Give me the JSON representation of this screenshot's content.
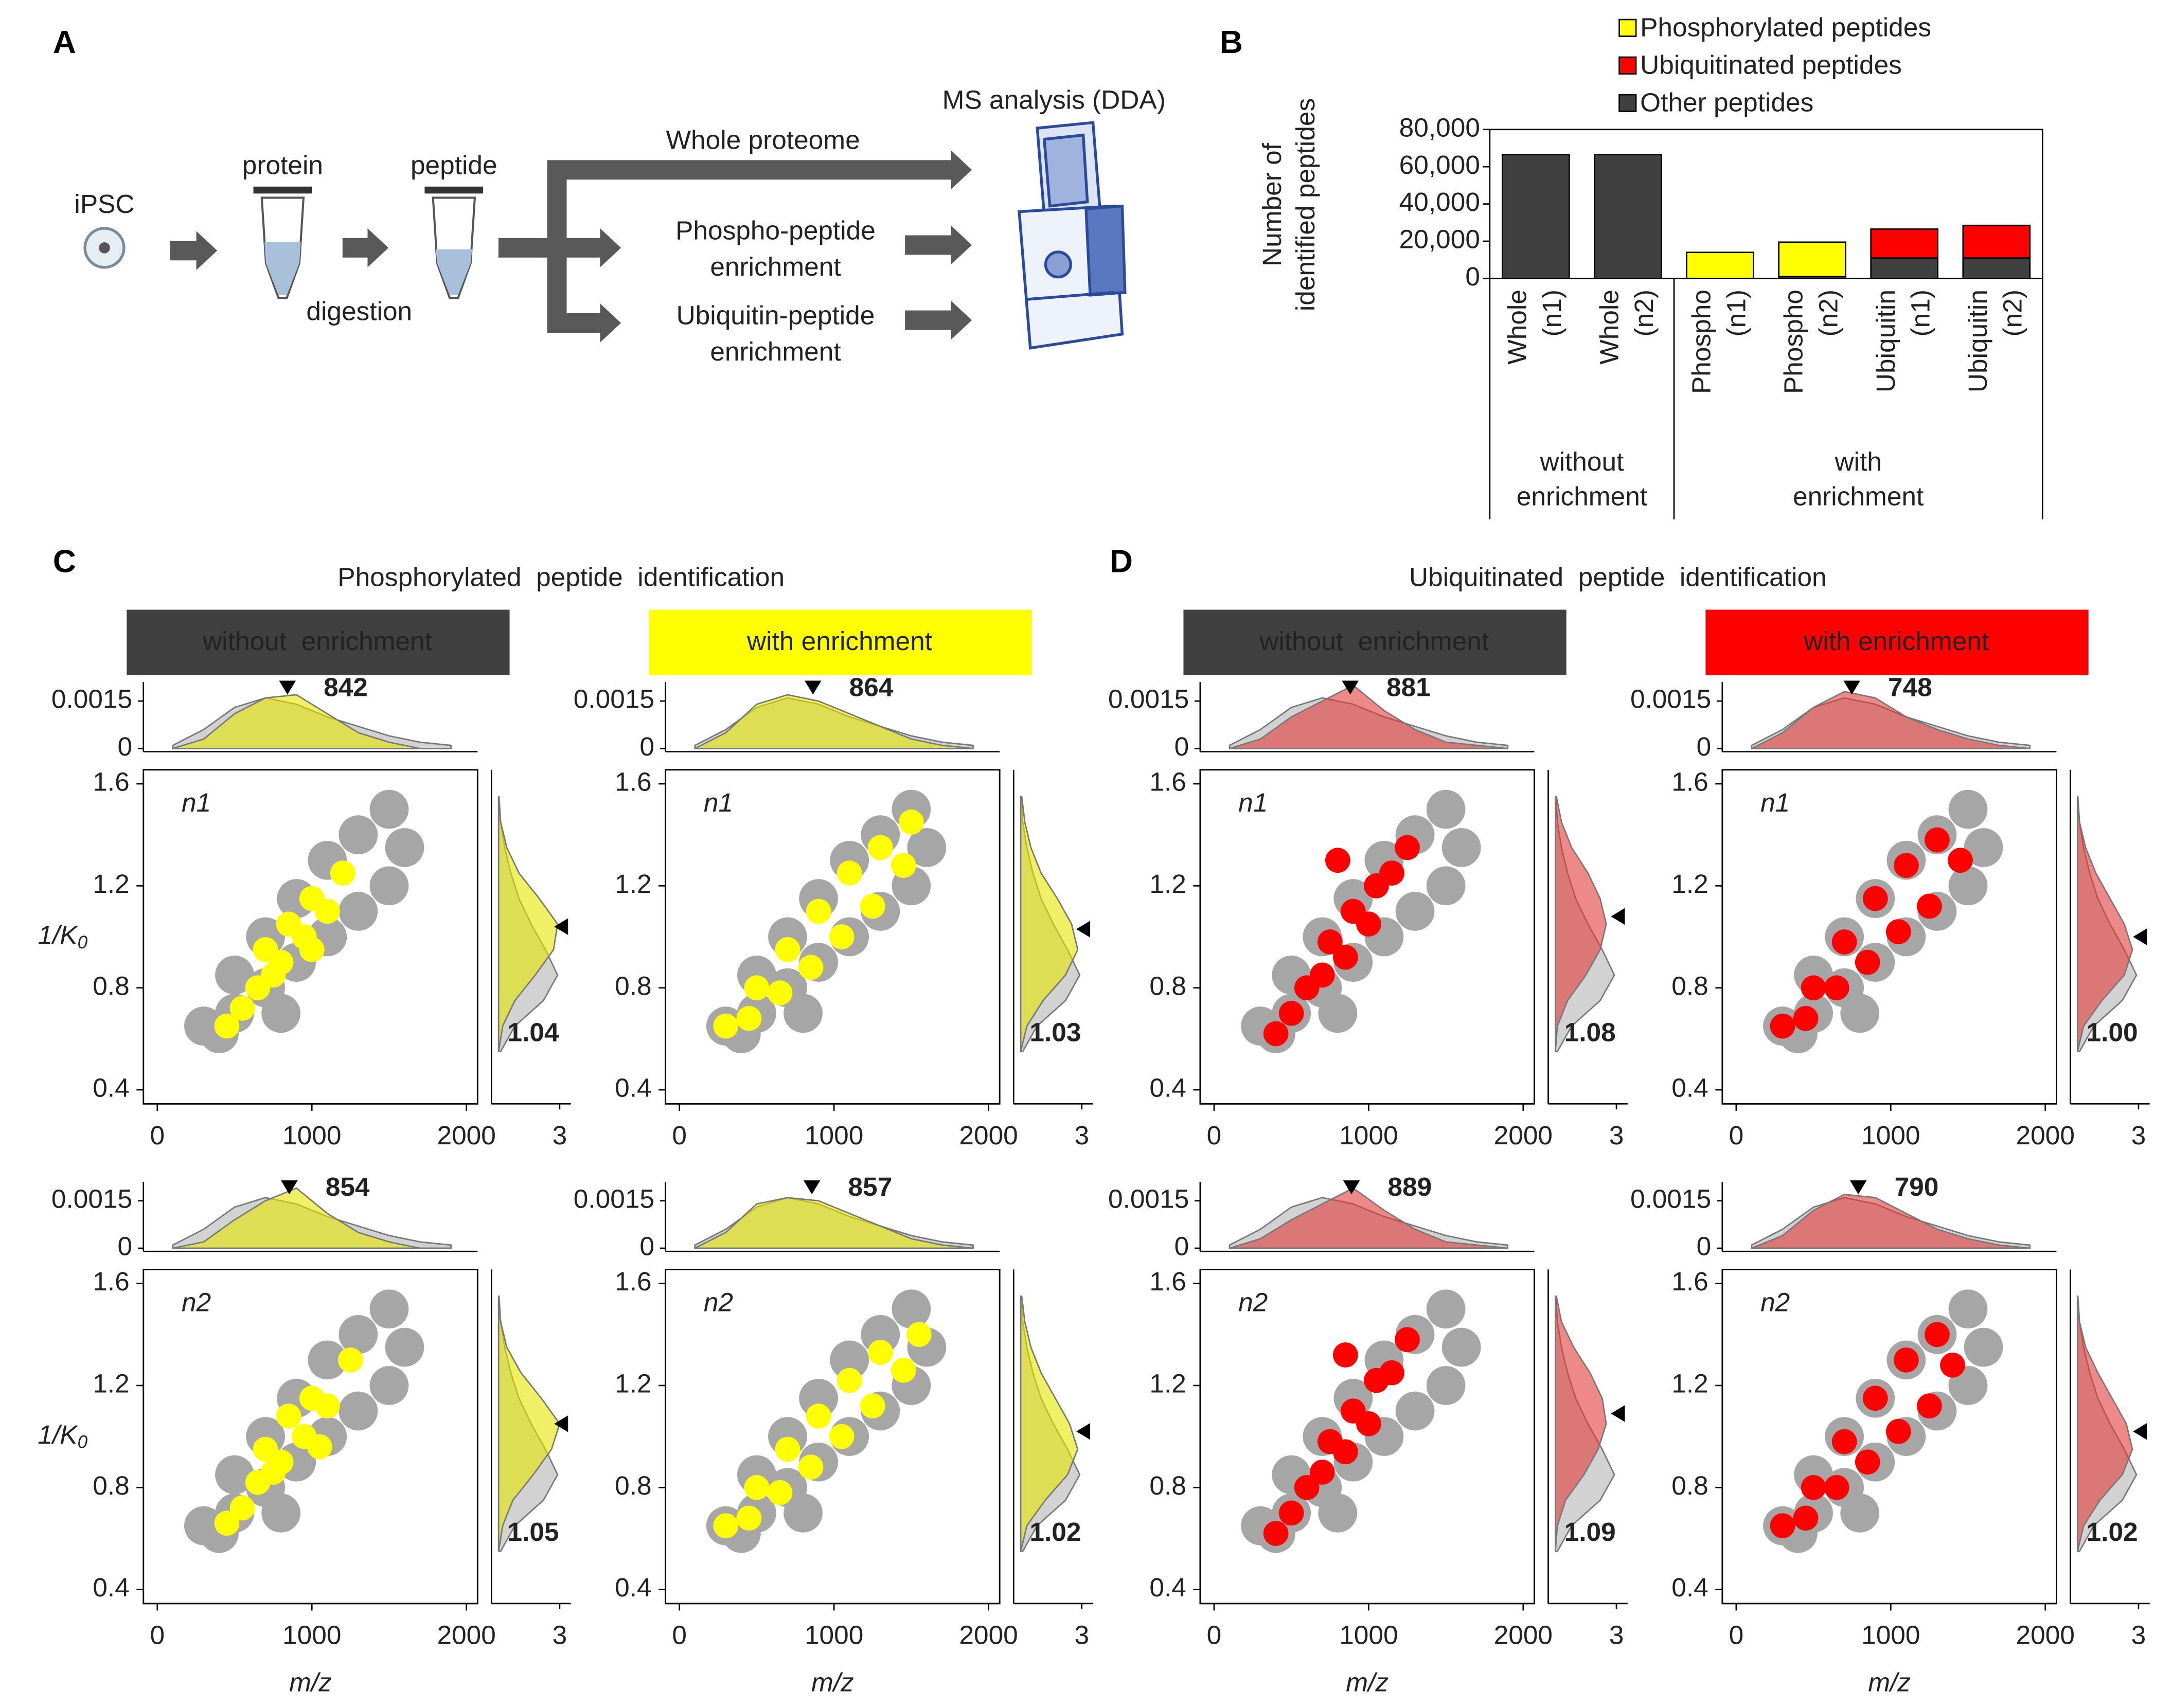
{
  "diagram": {
    "label": "A",
    "cell": "iPSC",
    "protein": "protein",
    "peptide": "peptide",
    "digestion": "digestion",
    "routes": [
      [
        "Whole proteome"
      ],
      [
        "Phospho-peptide",
        "enrichment"
      ],
      [
        "Ubiquitin-peptide",
        "enrichment"
      ]
    ],
    "instrument": "MS analysis (DDA)"
  },
  "chart_data": [
    {
      "type": "bar",
      "label": "B",
      "ylabel": [
        "Number of",
        "identified peptides"
      ],
      "ylim": [
        0,
        80000
      ],
      "yticks": [
        0,
        {
          "value": 20000,
          "label": "20,000"
        },
        {
          "value": 40000,
          "label": "40,000"
        },
        {
          "value": 60000,
          "label": "60,000"
        },
        {
          "value": 80000,
          "label": "80,000"
        }
      ],
      "groups": [
        {
          "label": [
            "without",
            "enrichment"
          ],
          "categories": [
            [
              "Whole",
              "(n1)"
            ],
            [
              "Whole",
              "(n2)"
            ]
          ]
        },
        {
          "label": [
            "with",
            "enrichment"
          ],
          "categories": [
            [
              "Phospho",
              "(n1)"
            ],
            [
              "Phospho",
              "(n2)"
            ],
            [
              "Ubiquitin",
              "(n1)"
            ],
            [
              "Ubiquitin",
              "(n2)"
            ]
          ]
        }
      ],
      "series": [
        {
          "name": "Phosphorylated peptides",
          "color": "#ffff00",
          "values": [
            0,
            0,
            14000,
            18500,
            0,
            0
          ]
        },
        {
          "name": "Ubiquitinated peptides",
          "color": "#ff0000",
          "values": [
            0,
            0,
            0,
            0,
            15500,
            17500
          ]
        },
        {
          "name": "Other peptides",
          "color": "#404040",
          "values": [
            66500,
            66500,
            0,
            1000,
            11000,
            11000
          ]
        }
      ]
    },
    {
      "type": "scatter_grid",
      "label": "C",
      "title": "Phosphorylated  peptide  identification",
      "xlabel": "m/z",
      "ylabel": {
        "text": "1/K",
        "sub": "0"
      },
      "xlim": [
        -90,
        2072
      ],
      "xticks": [
        0,
        1000,
        2000
      ],
      "ylim": [
        0.345,
        1.655
      ],
      "yticks": [
        0.4,
        0.8,
        1.2,
        1.6
      ],
      "density_lim": [
        -0.0001,
        0.0021
      ],
      "density_ticks": [
        0,
        0.0015
      ],
      "k0_density_lim": [
        -0.35,
        3.55
      ],
      "k0_density_ticks": [
        3
      ],
      "density_x": [
        100,
        300,
        500,
        700,
        900,
        1100,
        1300,
        1500,
        1700,
        1900
      ],
      "density_y": [
        0.55,
        0.65,
        0.75,
        0.85,
        0.95,
        1.05,
        1.15,
        1.25,
        1.35,
        1.45,
        1.55
      ],
      "background": [
        {
          "x": [
            300,
            400,
            500,
            500,
            700,
            700,
            800,
            900,
            900,
            1100,
            1100,
            1300,
            1300,
            1500,
            1500,
            1600
          ],
          "y": [
            0.65,
            0.62,
            0.7,
            0.85,
            0.8,
            1.0,
            0.7,
            0.9,
            1.15,
            1.0,
            1.3,
            1.1,
            1.4,
            1.2,
            1.5,
            1.35
          ],
          "density_mz": [
            0.0001,
            0.0006,
            0.0013,
            0.0016,
            0.0014,
            0.001,
            0.0007,
            0.0004,
            0.0002,
            0.0001
          ],
          "density_k0": [
            0.1,
            0.8,
            2.2,
            2.9,
            2.3,
            1.6,
            1.0,
            0.6,
            0.3,
            0.1,
            0.02
          ]
        },
        {
          "x": [
            300,
            400,
            500,
            500,
            700,
            700,
            800,
            900,
            900,
            1100,
            1100,
            1300,
            1300,
            1500,
            1500,
            1600
          ],
          "y": [
            0.65,
            0.62,
            0.7,
            0.85,
            0.8,
            1.0,
            0.7,
            0.9,
            1.15,
            1.0,
            1.3,
            1.1,
            1.4,
            1.2,
            1.5,
            1.35
          ],
          "density_mz": [
            0.0001,
            0.0006,
            0.0013,
            0.0016,
            0.0014,
            0.001,
            0.0007,
            0.0004,
            0.0002,
            0.0001
          ],
          "density_k0": [
            0.1,
            0.8,
            2.2,
            2.9,
            2.3,
            1.6,
            1.0,
            0.6,
            0.3,
            0.1,
            0.02
          ]
        }
      ],
      "columns": [
        {
          "header": "without  enrichment",
          "header_color": "#404040",
          "header_text_color": "#ffffff",
          "color": "#ffff00",
          "plots": [
            {
              "label": "n1",
              "peak_mz": 842,
              "peak_k0": 1.04,
              "x": [
                450,
                550,
                650,
                700,
                800,
                850,
                950,
                1000,
                1100,
                1200,
                750,
                1000
              ],
              "y": [
                0.65,
                0.72,
                0.8,
                0.95,
                0.9,
                1.05,
                1.0,
                1.15,
                1.1,
                1.25,
                0.85,
                0.95
              ],
              "density_mz": [
                0,
                0.0003,
                0.0011,
                0.0016,
                0.0017,
                0.0011,
                0.0005,
                0.0002,
                0,
                0
              ],
              "density_k0": [
                0,
                0.2,
                0.8,
                1.8,
                2.7,
                2.9,
                2.0,
                1.0,
                0.4,
                0.1,
                0
              ]
            },
            {
              "label": "n2",
              "peak_mz": 854,
              "peak_k0": 1.05,
              "x": [
                450,
                550,
                650,
                700,
                800,
                850,
                950,
                1000,
                1100,
                1250,
                750,
                1050
              ],
              "y": [
                0.66,
                0.72,
                0.82,
                0.95,
                0.9,
                1.08,
                1.0,
                1.15,
                1.12,
                1.3,
                0.86,
                0.96
              ],
              "density_mz": [
                0,
                0.0002,
                0.0009,
                0.0015,
                0.0019,
                0.0011,
                0.0005,
                0.0002,
                0,
                0
              ],
              "density_k0": [
                0,
                0.2,
                0.7,
                1.7,
                2.6,
                3.0,
                2.1,
                1.1,
                0.4,
                0.1,
                0
              ]
            }
          ]
        },
        {
          "header": "with enrichment",
          "header_color": "#ffff00",
          "header_text_color": "#000000",
          "color": "#ffff00",
          "plots": [
            {
              "label": "n1",
              "peak_mz": 864,
              "peak_k0": 1.03,
              "x": [
                300,
                450,
                500,
                650,
                700,
                850,
                900,
                1050,
                1100,
                1250,
                1300,
                1450,
                1500
              ],
              "y": [
                0.65,
                0.68,
                0.8,
                0.78,
                0.95,
                0.88,
                1.1,
                1.0,
                1.25,
                1.12,
                1.35,
                1.28,
                1.45
              ],
              "density_mz": [
                0,
                0.0005,
                0.0014,
                0.0017,
                0.0015,
                0.0011,
                0.0007,
                0.0003,
                0.0001,
                0
              ],
              "density_k0": [
                0,
                0.3,
                1.1,
                2.2,
                2.8,
                2.5,
                1.8,
                1.0,
                0.5,
                0.2,
                0.05
              ]
            },
            {
              "label": "n2",
              "peak_mz": 857,
              "peak_k0": 1.02,
              "x": [
                300,
                450,
                500,
                650,
                700,
                850,
                900,
                1050,
                1100,
                1250,
                1300,
                1450,
                1550
              ],
              "y": [
                0.65,
                0.68,
                0.8,
                0.78,
                0.95,
                0.88,
                1.08,
                1.0,
                1.22,
                1.12,
                1.33,
                1.26,
                1.4
              ],
              "density_mz": [
                0,
                0.0005,
                0.0014,
                0.0016,
                0.0015,
                0.0011,
                0.0007,
                0.0003,
                0.0001,
                0
              ],
              "density_k0": [
                0,
                0.3,
                1.2,
                2.3,
                2.8,
                2.4,
                1.7,
                1.0,
                0.5,
                0.2,
                0.05
              ]
            }
          ]
        }
      ]
    },
    {
      "type": "scatter_grid",
      "label": "D",
      "title": "Ubiquitinated  peptide  identification",
      "xlabel": "m/z",
      "xlim": [
        -90,
        2072
      ],
      "xticks": [
        0,
        1000,
        2000
      ],
      "ylim": [
        0.345,
        1.655
      ],
      "yticks": [
        0.4,
        0.8,
        1.2,
        1.6
      ],
      "density_lim": [
        -0.0001,
        0.0021
      ],
      "density_ticks": [
        0,
        0.0015
      ],
      "k0_density_lim": [
        -0.35,
        3.55
      ],
      "k0_density_ticks": [
        3
      ],
      "density_x": [
        100,
        300,
        500,
        700,
        900,
        1100,
        1300,
        1500,
        1700,
        1900
      ],
      "density_y": [
        0.55,
        0.65,
        0.75,
        0.85,
        0.95,
        1.05,
        1.15,
        1.25,
        1.35,
        1.45,
        1.55
      ],
      "background": [
        {
          "x": [
            300,
            400,
            500,
            500,
            700,
            700,
            800,
            900,
            900,
            1100,
            1100,
            1300,
            1300,
            1500,
            1500,
            1600
          ],
          "y": [
            0.65,
            0.62,
            0.7,
            0.85,
            0.8,
            1.0,
            0.7,
            0.9,
            1.15,
            1.0,
            1.3,
            1.1,
            1.4,
            1.2,
            1.5,
            1.35
          ],
          "density_mz": [
            0.0001,
            0.0006,
            0.0013,
            0.0016,
            0.0014,
            0.001,
            0.0007,
            0.0004,
            0.0002,
            0.0001
          ],
          "density_k0": [
            0.1,
            0.8,
            2.2,
            2.9,
            2.3,
            1.6,
            1.0,
            0.6,
            0.3,
            0.1,
            0.02
          ]
        },
        {
          "x": [
            300,
            400,
            500,
            500,
            700,
            700,
            800,
            900,
            900,
            1100,
            1100,
            1300,
            1300,
            1500,
            1500,
            1600
          ],
          "y": [
            0.65,
            0.62,
            0.7,
            0.85,
            0.8,
            1.0,
            0.7,
            0.9,
            1.15,
            1.0,
            1.3,
            1.1,
            1.4,
            1.2,
            1.5,
            1.35
          ],
          "density_mz": [
            0.0001,
            0.0006,
            0.0013,
            0.0016,
            0.0014,
            0.001,
            0.0007,
            0.0004,
            0.0002,
            0.0001
          ],
          "density_k0": [
            0.1,
            0.8,
            2.2,
            2.9,
            2.3,
            1.6,
            1.0,
            0.6,
            0.3,
            0.1,
            0.02
          ]
        }
      ],
      "columns": [
        {
          "header": "without  enrichment",
          "header_color": "#404040",
          "header_text_color": "#ffffff",
          "color": "#ff0000",
          "plots": [
            {
              "label": "n1",
              "peak_mz": 881,
              "peak_k0": 1.08,
              "x": [
                400,
                500,
                600,
                700,
                750,
                850,
                900,
                1000,
                1050,
                1150,
                1250,
                800
              ],
              "y": [
                0.62,
                0.7,
                0.8,
                0.85,
                0.98,
                0.92,
                1.1,
                1.05,
                1.2,
                1.25,
                1.35,
                1.3
              ],
              "density_mz": [
                0,
                0.0003,
                0.001,
                0.0015,
                0.002,
                0.0012,
                0.0006,
                0.0002,
                0.0001,
                0
              ],
              "density_k0": [
                0,
                0.1,
                0.6,
                1.5,
                2.2,
                2.5,
                2.2,
                1.6,
                0.8,
                0.3,
                0.05
              ]
            },
            {
              "label": "n2",
              "peak_mz": 889,
              "peak_k0": 1.09,
              "x": [
                400,
                500,
                600,
                700,
                750,
                850,
                900,
                1000,
                1050,
                1150,
                1250,
                850
              ],
              "y": [
                0.62,
                0.7,
                0.8,
                0.86,
                0.98,
                0.94,
                1.1,
                1.05,
                1.22,
                1.25,
                1.38,
                1.32
              ],
              "density_mz": [
                0,
                0.0003,
                0.0009,
                0.0014,
                0.0019,
                0.0012,
                0.0006,
                0.0002,
                0.0001,
                0
              ],
              "density_k0": [
                0,
                0.1,
                0.5,
                1.4,
                2.1,
                2.5,
                2.3,
                1.7,
                0.9,
                0.3,
                0.05
              ]
            }
          ]
        },
        {
          "header": "with enrichment",
          "header_color": "#ff0000",
          "header_text_color": "#ffffff",
          "color": "#ff0000",
          "plots": [
            {
              "label": "n1",
              "peak_mz": 748,
              "peak_k0": 1,
              "peak_k0_label": "1.00",
              "x": [
                300,
                450,
                500,
                650,
                700,
                850,
                900,
                1050,
                1100,
                1250,
                1300,
                1450
              ],
              "y": [
                0.65,
                0.68,
                0.8,
                0.8,
                0.98,
                0.9,
                1.15,
                1.02,
                1.28,
                1.12,
                1.38,
                1.3
              ],
              "density_mz": [
                0,
                0.0005,
                0.0013,
                0.0018,
                0.0016,
                0.001,
                0.0006,
                0.0003,
                0.0001,
                0
              ],
              "density_k0": [
                0,
                0.3,
                1.2,
                2.3,
                2.7,
                2.3,
                1.6,
                0.9,
                0.4,
                0.1,
                0
              ]
            },
            {
              "label": "n2",
              "peak_mz": 790,
              "peak_k0": 1.02,
              "x": [
                300,
                450,
                500,
                650,
                700,
                850,
                900,
                1050,
                1100,
                1250,
                1300,
                1400
              ],
              "y": [
                0.65,
                0.68,
                0.8,
                0.8,
                0.98,
                0.9,
                1.15,
                1.02,
                1.3,
                1.12,
                1.4,
                1.28
              ],
              "density_mz": [
                0,
                0.0004,
                0.0012,
                0.0017,
                0.0016,
                0.0011,
                0.0006,
                0.0003,
                0.0001,
                0
              ],
              "density_k0": [
                0,
                0.3,
                1.1,
                2.2,
                2.7,
                2.4,
                1.7,
                1.0,
                0.4,
                0.1,
                0
              ]
            }
          ]
        }
      ]
    }
  ]
}
